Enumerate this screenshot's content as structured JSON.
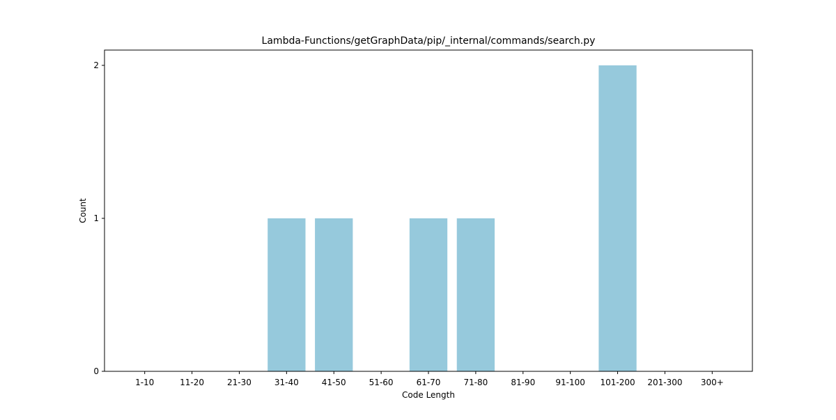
{
  "chart_data": {
    "type": "bar",
    "title": "Lambda-Functions/getGraphData/pip/_internal/commands/search.py",
    "xlabel": "Code Length",
    "ylabel": "Count",
    "categories": [
      "1-10",
      "11-20",
      "21-30",
      "31-40",
      "41-50",
      "51-60",
      "61-70",
      "71-80",
      "81-90",
      "91-100",
      "101-200",
      "201-300",
      "300+"
    ],
    "values": [
      0,
      0,
      0,
      1,
      1,
      0,
      1,
      1,
      0,
      0,
      2,
      0,
      0
    ],
    "ylim": [
      0,
      2.1
    ],
    "yticks": [
      0,
      1,
      2
    ],
    "bar_color": "#96c9dc",
    "grid": false,
    "legend": "none"
  }
}
